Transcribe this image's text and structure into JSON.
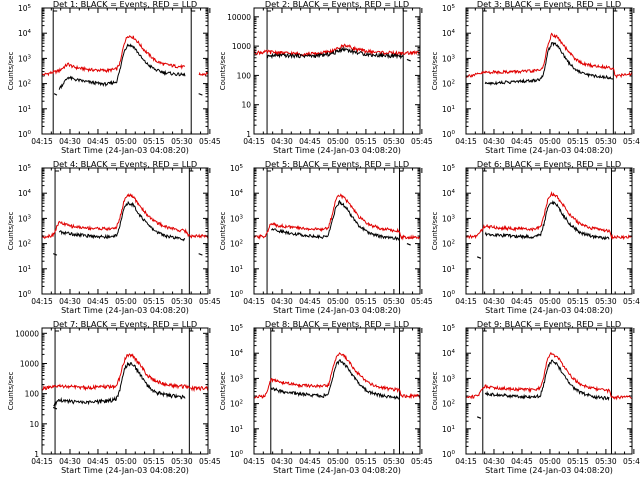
{
  "page": {
    "xlabel": "Start Time (24-Jan-03 04:08:20)",
    "ylabel": "Counts/sec",
    "x_ticks": [
      "04:15",
      "04:30",
      "04:45",
      "05:00",
      "05:15",
      "05:30",
      "05:45"
    ],
    "colors": {
      "events": "#000000",
      "lld": "#e00000",
      "axes": "#000000"
    }
  },
  "chart_data": [
    {
      "type": "line",
      "title": "Det 1: BLACK = Events, RED = LLD",
      "xlabel": "Start Time (24-Jan-03 04:08:20)",
      "ylabel": "Counts/sec",
      "x_minutes": [
        7,
        16,
        21,
        24,
        28,
        34,
        38,
        42,
        47,
        49,
        51,
        53,
        56,
        59,
        61,
        64,
        68,
        72,
        78,
        84,
        86,
        91,
        96
      ],
      "series": [
        {
          "name": "LLD",
          "values": [
            220,
            320,
            600,
            450,
            400,
            350,
            340,
            330,
            380,
            700,
            4000,
            8000,
            7000,
            4000,
            2500,
            1500,
            800,
            600,
            500,
            450,
            null,
            240,
            250
          ]
        },
        {
          "name": "Events",
          "values": [
            null,
            60,
            180,
            150,
            130,
            110,
            100,
            95,
            120,
            400,
            2000,
            3500,
            3000,
            1500,
            900,
            550,
            350,
            280,
            240,
            220,
            null,
            null,
            null
          ]
        }
      ],
      "isolated_events": [
        {
          "x_minutes": [
            13.5,
            15
          ],
          "value": 40
        },
        {
          "x_minutes": [
            91,
            93
          ],
          "value": 40
        }
      ],
      "ylim": [
        1,
        100000
      ],
      "yscale": "log",
      "y_tick_style": "power",
      "vlines_minutes": [
        13,
        87
      ],
      "grid": false
    },
    {
      "type": "line",
      "title": "Det 2: BLACK = Events, RED = LLD",
      "xlabel": "Start Time (24-Jan-03 04:08:20)",
      "ylabel": "Counts/sec",
      "x_minutes": [
        7,
        13,
        14,
        20,
        30,
        40,
        45,
        50,
        53,
        56,
        60,
        65,
        70,
        80,
        87,
        88,
        96
      ],
      "series": [
        {
          "name": "LLD",
          "values": [
            600,
            620,
            640,
            600,
            540,
            550,
            600,
            700,
            900,
            1100,
            850,
            700,
            640,
            580,
            560,
            580,
            600
          ]
        },
        {
          "name": "Events",
          "values": [
            null,
            null,
            450,
            480,
            470,
            460,
            500,
            580,
            750,
            800,
            650,
            560,
            500,
            470,
            450,
            null,
            null
          ]
        }
      ],
      "isolated_events": [
        {
          "x_minutes": [
            89,
            91
          ],
          "value": 350
        }
      ],
      "ylim": [
        1,
        20000
      ],
      "yscale": "log",
      "y_tick_style": "plain",
      "vlines_minutes": [
        14,
        87
      ],
      "grid": false
    },
    {
      "type": "line",
      "title": "Det 3: BLACK = Events, RED = LLD",
      "xlabel": "Start Time (24-Jan-03 04:08:20)",
      "ylabel": "Counts/sec",
      "x_minutes": [
        7,
        13,
        17,
        25,
        35,
        42,
        47,
        49,
        51,
        53,
        56,
        59,
        62,
        66,
        70,
        76,
        82,
        86,
        87,
        96
      ],
      "series": [
        {
          "name": "LLD",
          "values": [
            200,
            230,
            280,
            290,
            300,
            310,
            350,
            600,
            4000,
            9000,
            7000,
            3500,
            1800,
            900,
            600,
            500,
            450,
            420,
            200,
            240
          ]
        },
        {
          "name": "Events",
          "values": [
            null,
            null,
            100,
            110,
            120,
            130,
            150,
            300,
            2000,
            4000,
            3500,
            1500,
            700,
            350,
            250,
            200,
            180,
            170,
            null,
            null
          ]
        }
      ],
      "isolated_events": [],
      "ylim": [
        1,
        100000
      ],
      "yscale": "log",
      "y_tick_style": "power",
      "vlines_minutes": [
        16,
        86
      ],
      "grid": false
    },
    {
      "type": "line",
      "title": "Det 4: BLACK = Events, RED = LLD",
      "xlabel": "Start Time (24-Jan-03 04:08:20)",
      "ylabel": "Counts/sec",
      "x_minutes": [
        7,
        13,
        16,
        22,
        30,
        38,
        44,
        47,
        49,
        51,
        53,
        56,
        59,
        63,
        68,
        74,
        80,
        84,
        86,
        96
      ],
      "series": [
        {
          "name": "LLD",
          "values": [
            180,
            220,
            700,
            500,
            420,
            400,
            380,
            450,
            1200,
            5000,
            9000,
            7000,
            3500,
            1500,
            700,
            450,
            350,
            320,
            200,
            200
          ]
        },
        {
          "name": "Events",
          "values": [
            null,
            null,
            300,
            250,
            210,
            190,
            180,
            220,
            600,
            2500,
            4000,
            3500,
            1500,
            650,
            300,
            200,
            160,
            150,
            null,
            null
          ]
        }
      ],
      "isolated_events": [
        {
          "x_minutes": [
            13,
            15
          ],
          "value": 40
        },
        {
          "x_minutes": [
            91,
            93
          ],
          "value": 40
        }
      ],
      "ylim": [
        1,
        100000
      ],
      "yscale": "log",
      "y_tick_style": "power",
      "vlines_minutes": [
        14,
        86
      ],
      "grid": false
    },
    {
      "type": "line",
      "title": "Det 5: BLACK = Events, RED = LLD",
      "xlabel": "Start Time (24-Jan-03 04:08:20)",
      "ylabel": "Counts/sec",
      "x_minutes": [
        7,
        13,
        16,
        22,
        30,
        38,
        44,
        47,
        49,
        51,
        53,
        56,
        59,
        63,
        68,
        74,
        80,
        85,
        86,
        96
      ],
      "series": [
        {
          "name": "LLD",
          "values": [
            180,
            200,
            600,
            500,
            420,
            380,
            360,
            450,
            1500,
            6000,
            9000,
            6000,
            3000,
            1200,
            600,
            420,
            350,
            320,
            180,
            180
          ]
        },
        {
          "name": "Events",
          "values": [
            null,
            null,
            400,
            300,
            240,
            200,
            180,
            230,
            800,
            3000,
            4500,
            3000,
            1300,
            550,
            280,
            200,
            170,
            160,
            null,
            null
          ]
        }
      ],
      "isolated_events": [
        {
          "x_minutes": [
            89,
            91
          ],
          "value": 100
        }
      ],
      "ylim": [
        1,
        100000
      ],
      "yscale": "log",
      "y_tick_style": "power",
      "vlines_minutes": [
        14,
        85
      ],
      "grid": false
    },
    {
      "type": "line",
      "title": "Det 6: BLACK = Events, RED = LLD",
      "xlabel": "Start Time (24-Jan-03 04:08:20)",
      "ylabel": "Counts/sec",
      "x_minutes": [
        7,
        13,
        17,
        24,
        32,
        40,
        44,
        47,
        49,
        51,
        53,
        56,
        59,
        63,
        68,
        74,
        80,
        84,
        85,
        96
      ],
      "series": [
        {
          "name": "LLD",
          "values": [
            180,
            200,
            500,
            420,
            400,
            380,
            370,
            450,
            1500,
            6000,
            9500,
            7000,
            3500,
            1300,
            600,
            420,
            350,
            320,
            180,
            180
          ]
        },
        {
          "name": "Events",
          "values": [
            null,
            null,
            250,
            220,
            200,
            190,
            180,
            230,
            700,
            3000,
            4500,
            3200,
            1400,
            550,
            280,
            200,
            170,
            160,
            null,
            null
          ]
        }
      ],
      "isolated_events": [
        {
          "x_minutes": [
            13,
            15
          ],
          "value": 30
        }
      ],
      "ylim": [
        1,
        100000
      ],
      "yscale": "log",
      "y_tick_style": "power",
      "vlines_minutes": [
        16,
        85
      ],
      "grid": false
    },
    {
      "type": "line",
      "title": "Det 7: BLACK = Events, RED = LLD",
      "xlabel": "Start Time (24-Jan-03 04:08:20)",
      "ylabel": "Counts/sec",
      "x_minutes": [
        7,
        13,
        16,
        22,
        30,
        38,
        44,
        47,
        49,
        51,
        53,
        56,
        59,
        63,
        68,
        74,
        80,
        84,
        86,
        96
      ],
      "series": [
        {
          "name": "LLD",
          "values": [
            150,
            160,
            180,
            170,
            160,
            165,
            170,
            180,
            400,
            1200,
            2000,
            1700,
            1000,
            450,
            250,
            200,
            180,
            170,
            150,
            150
          ]
        },
        {
          "name": "Events",
          "values": [
            null,
            40,
            60,
            55,
            50,
            55,
            60,
            70,
            150,
            600,
            1000,
            900,
            500,
            200,
            110,
            90,
            80,
            75,
            null,
            null
          ]
        }
      ],
      "isolated_events": [
        {
          "x_minutes": [
            13,
            15
          ],
          "value": 35
        }
      ],
      "ylim": [
        1,
        15000
      ],
      "yscale": "log",
      "y_tick_style": "plain",
      "vlines_minutes": [
        14,
        86
      ],
      "grid": false
    },
    {
      "type": "line",
      "title": "Det 8: BLACK = Events, RED = LLD",
      "xlabel": "Start Time (24-Jan-03 04:08:20)",
      "ylabel": "Counts/sec",
      "x_minutes": [
        7,
        13,
        16,
        22,
        30,
        38,
        44,
        47,
        49,
        51,
        53,
        56,
        59,
        63,
        68,
        74,
        80,
        85,
        86,
        96
      ],
      "series": [
        {
          "name": "LLD",
          "values": [
            180,
            200,
            900,
            700,
            550,
            500,
            480,
            550,
            2000,
            7000,
            10000,
            7000,
            3500,
            1500,
            700,
            450,
            380,
            350,
            200,
            200
          ]
        },
        {
          "name": "Events",
          "values": [
            null,
            null,
            400,
            300,
            250,
            220,
            200,
            250,
            900,
            3500,
            5000,
            3500,
            1600,
            650,
            300,
            220,
            180,
            170,
            null,
            null
          ]
        }
      ],
      "isolated_events": [],
      "ylim": [
        1,
        100000
      ],
      "yscale": "log",
      "y_tick_style": "power",
      "vlines_minutes": [
        16,
        85
      ],
      "grid": false
    },
    {
      "type": "line",
      "title": "Det 9: BLACK = Events, RED = LLD",
      "xlabel": "Start Time (24-Jan-03 04:08:20)",
      "ylabel": "Counts/sec",
      "x_minutes": [
        7,
        13,
        17,
        24,
        32,
        40,
        44,
        47,
        49,
        51,
        53,
        56,
        59,
        63,
        68,
        74,
        80,
        84,
        85,
        96
      ],
      "series": [
        {
          "name": "LLD",
          "values": [
            180,
            200,
            500,
            420,
            380,
            360,
            350,
            420,
            1500,
            7000,
            10000,
            7000,
            3500,
            1300,
            600,
            420,
            350,
            320,
            180,
            180
          ]
        },
        {
          "name": "Events",
          "values": [
            null,
            null,
            250,
            220,
            200,
            190,
            180,
            220,
            700,
            3000,
            5000,
            3500,
            1500,
            550,
            280,
            200,
            170,
            160,
            null,
            null
          ]
        }
      ],
      "isolated_events": [
        {
          "x_minutes": [
            13,
            15
          ],
          "value": 30
        }
      ],
      "ylim": [
        1,
        100000
      ],
      "yscale": "log",
      "y_tick_style": "power",
      "vlines_minutes": [
        16,
        85
      ],
      "grid": false
    }
  ]
}
